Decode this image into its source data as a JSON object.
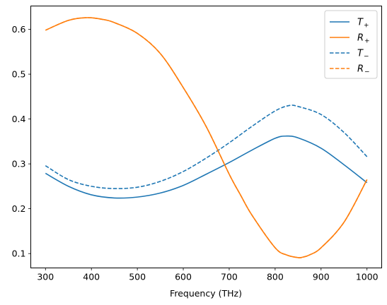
{
  "chart_data": {
    "type": "line",
    "title": "",
    "xlabel": "Frequency (THz)",
    "ylabel": "",
    "xlim": [
      268,
      1032
    ],
    "ylim": [
      0.068,
      0.652
    ],
    "xticks": [
      300,
      400,
      500,
      600,
      700,
      800,
      900,
      1000
    ],
    "yticks": [
      0.1,
      0.2,
      0.3,
      0.4,
      0.5,
      0.6
    ],
    "grid": false,
    "legend_placement": "top-right",
    "series": [
      {
        "name": "T₊",
        "legend_main": "T",
        "legend_sub": "+",
        "color": "#1f77b4",
        "dash": "solid",
        "x": [
          300,
          350,
          400,
          450,
          500,
          550,
          600,
          650,
          700,
          750,
          800,
          825,
          850,
          900,
          950,
          1000
        ],
        "y": [
          0.279,
          0.25,
          0.231,
          0.224,
          0.226,
          0.235,
          0.252,
          0.277,
          0.303,
          0.331,
          0.357,
          0.362,
          0.358,
          0.335,
          0.298,
          0.258
        ]
      },
      {
        "name": "R₊",
        "legend_main": "R",
        "legend_sub": "+",
        "color": "#ff7f0e",
        "dash": "solid",
        "x": [
          300,
          350,
          390,
          425,
          450,
          500,
          550,
          600,
          650,
          700,
          725,
          750,
          800,
          825,
          850,
          860,
          875,
          900,
          950,
          1000
        ],
        "y": [
          0.598,
          0.62,
          0.626,
          0.622,
          0.615,
          0.591,
          0.546,
          0.47,
          0.383,
          0.277,
          0.23,
          0.185,
          0.113,
          0.097,
          0.091,
          0.092,
          0.097,
          0.113,
          0.17,
          0.265
        ]
      },
      {
        "name": "T₋",
        "legend_main": "T",
        "legend_sub": "−",
        "color": "#1f77b4",
        "dash": "dashed",
        "x": [
          300,
          350,
          400,
          450,
          500,
          550,
          600,
          650,
          700,
          750,
          800,
          830,
          850,
          900,
          950,
          1000
        ],
        "y": [
          0.296,
          0.265,
          0.25,
          0.245,
          0.248,
          0.261,
          0.283,
          0.313,
          0.347,
          0.384,
          0.418,
          0.43,
          0.428,
          0.41,
          0.37,
          0.316
        ]
      },
      {
        "name": "R₋",
        "legend_main": "R",
        "legend_sub": "−",
        "color": "#ff7f0e",
        "dash": "dashed",
        "x": [
          300,
          350,
          390,
          425,
          450,
          500,
          550,
          600,
          650,
          700,
          725,
          750,
          800,
          825,
          850,
          860,
          875,
          900,
          950,
          1000
        ],
        "y": [
          0.598,
          0.62,
          0.626,
          0.622,
          0.615,
          0.591,
          0.546,
          0.47,
          0.383,
          0.277,
          0.23,
          0.185,
          0.113,
          0.097,
          0.091,
          0.092,
          0.097,
          0.113,
          0.17,
          0.265
        ]
      }
    ]
  }
}
